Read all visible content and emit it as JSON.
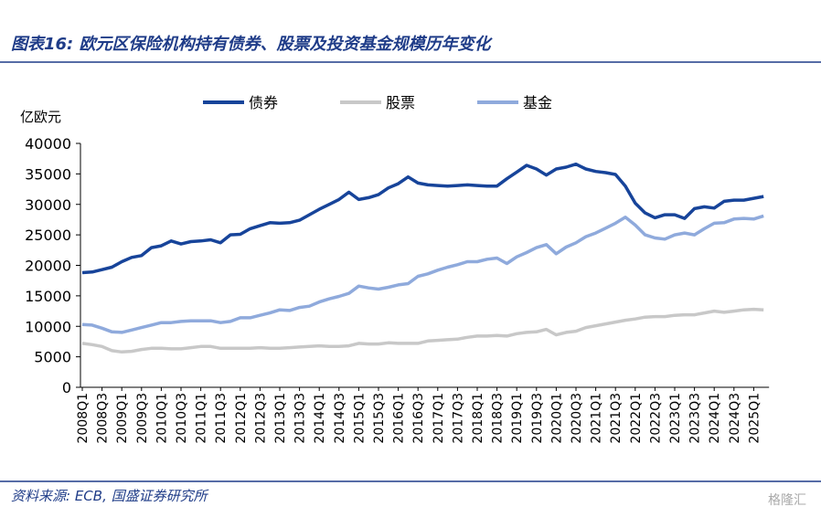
{
  "chart_data": {
    "type": "line",
    "title": "图表16: 欧元区保险机构持有债券、股票及投资基金规模历年变化",
    "y_label": "亿欧元",
    "source": "资料来源: ECB, 国盛证券研究所",
    "watermark": "格隆汇",
    "categories": [
      "2008Q1",
      null,
      "2008Q3",
      null,
      "2009Q1",
      null,
      "2009Q3",
      null,
      "2010Q1",
      null,
      "2010Q3",
      null,
      "2011Q1",
      null,
      "2011Q3",
      null,
      "2012Q1",
      null,
      "2012Q3",
      null,
      "2013Q1",
      null,
      "2013Q3",
      null,
      "2014Q1",
      null,
      "2014Q3",
      null,
      "2015Q1",
      null,
      "2015Q3",
      null,
      "2016Q1",
      null,
      "2016Q3",
      null,
      "2017Q1",
      null,
      "2017Q3",
      null,
      "2018Q1",
      null,
      "2018Q3",
      null,
      "2019Q1",
      null,
      "2019Q3",
      null,
      "2020Q1",
      null,
      "2020Q3",
      null,
      "2021Q1",
      null,
      "2021Q3",
      null,
      "2022Q1",
      null,
      "2022Q3",
      null,
      "2023Q1",
      null,
      "2023Q3",
      null,
      "2024Q1",
      null,
      "2024Q3",
      null,
      "2025Q1",
      null
    ],
    "series": [
      {
        "name": "债券",
        "color": "#17449a",
        "values": [
          18800,
          18900,
          19300,
          19700,
          20600,
          21300,
          21600,
          22900,
          23200,
          24000,
          23500,
          23900,
          24000,
          24200,
          23700,
          25000,
          25100,
          26000,
          26500,
          27000,
          26900,
          27000,
          27400,
          28300,
          29200,
          30000,
          30800,
          32000,
          30800,
          31100,
          31600,
          32700,
          33400,
          34500,
          33500,
          33200,
          33100,
          33000,
          33100,
          33200,
          33100,
          33000,
          33000,
          34200,
          35300,
          36400,
          35800,
          34800,
          35800,
          36100,
          36600,
          35800,
          35400,
          35200,
          34900,
          33000,
          30200,
          28600,
          27800,
          28300,
          28300,
          27700,
          29300,
          29600,
          29400,
          30500,
          30700,
          30700,
          31000,
          31300
        ]
      },
      {
        "name": "股票",
        "color": "#c8c8c8",
        "values": [
          7200,
          7000,
          6700,
          6000,
          5800,
          5900,
          6200,
          6400,
          6400,
          6300,
          6300,
          6500,
          6700,
          6700,
          6400,
          6400,
          6400,
          6400,
          6500,
          6400,
          6400,
          6500,
          6600,
          6700,
          6800,
          6700,
          6700,
          6800,
          7200,
          7100,
          7100,
          7300,
          7200,
          7200,
          7200,
          7600,
          7700,
          7800,
          7900,
          8200,
          8400,
          8400,
          8500,
          8400,
          8800,
          9000,
          9100,
          9500,
          8600,
          9000,
          9200,
          9800,
          10100,
          10400,
          10700,
          11000,
          11200,
          11500,
          11600,
          11600,
          11800,
          11900,
          11900,
          12200,
          12500,
          12300,
          12500,
          12700,
          12800,
          12700
        ]
      },
      {
        "name": "基金",
        "color": "#8faadc",
        "values": [
          10300,
          10200,
          9700,
          9100,
          9000,
          9400,
          9800,
          10200,
          10600,
          10600,
          10800,
          10900,
          10900,
          10900,
          10600,
          10800,
          11400,
          11400,
          11800,
          12200,
          12700,
          12600,
          13100,
          13300,
          14000,
          14500,
          14900,
          15400,
          16600,
          16300,
          16100,
          16400,
          16800,
          17000,
          18200,
          18600,
          19200,
          19700,
          20100,
          20600,
          20600,
          21000,
          21200,
          20300,
          21400,
          22100,
          22900,
          23400,
          21900,
          23000,
          23700,
          24700,
          25300,
          26100,
          26900,
          27900,
          26600,
          25000,
          24500,
          24300,
          25000,
          25300,
          25000,
          26000,
          26900,
          27000,
          27600,
          27700,
          27600,
          28100
        ]
      }
    ],
    "ylim": [
      0,
      40000
    ],
    "yticks": [
      0,
      5000,
      10000,
      15000,
      20000,
      25000,
      30000,
      35000,
      40000
    ],
    "grid": false,
    "legend": "top"
  }
}
